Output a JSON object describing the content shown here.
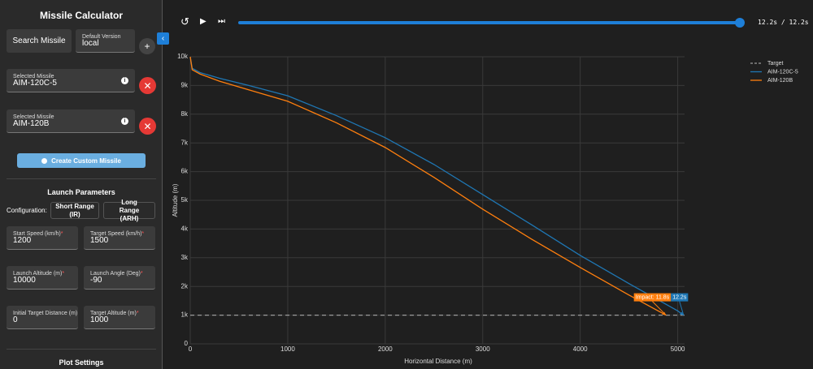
{
  "sidebar": {
    "title": "Missile Calculator",
    "search_button": "Search Missile",
    "default_version": {
      "label": "Default Version",
      "value": "local"
    },
    "selected_missiles": [
      {
        "label": "Selected Missile",
        "value": "AIM-120C-5"
      },
      {
        "label": "Selected Missile",
        "value": "AIM-120B"
      }
    ],
    "create_button": "Create Custom Missile",
    "launch_parameters": {
      "title": "Launch Parameters",
      "configuration_label": "Configuration:",
      "configurations": [
        "Short Range (IR)",
        "Long Range (ARH)"
      ],
      "fields": [
        {
          "label": "Start Speed (km/h)",
          "required_mark": "*",
          "value": "1200"
        },
        {
          "label": "Target Speed (km/h)",
          "required_mark": "*",
          "value": "1500"
        },
        {
          "label": "Launch Altitude (m)",
          "required_mark": "*",
          "value": "10000"
        },
        {
          "label": "Launch Angle (Deg)",
          "required_mark": "*",
          "value": "-90"
        },
        {
          "label": "Initial Target Distance (m)",
          "value": "0"
        },
        {
          "label": "Target Altitude (m)",
          "required_mark": "*",
          "value": "1000"
        }
      ]
    },
    "plot_settings_title": "Plot Settings"
  },
  "playback": {
    "time_label": "12.2s / 12.2s"
  },
  "chart_data": {
    "type": "line",
    "x_label": "Horizontal Distance (m)",
    "y_label": "Altitude (m)",
    "xlim": [
      0,
      5070
    ],
    "ylim": [
      0,
      10000
    ],
    "xticks": [
      0,
      1000,
      2000,
      3000,
      4000,
      5000
    ],
    "yticks": [
      {
        "value": 0,
        "label": "0"
      },
      {
        "value": 1000,
        "label": "1k"
      },
      {
        "value": 2000,
        "label": "2k"
      },
      {
        "value": 3000,
        "label": "3k"
      },
      {
        "value": 4000,
        "label": "4k"
      },
      {
        "value": 5000,
        "label": "5k"
      },
      {
        "value": 6000,
        "label": "6k"
      },
      {
        "value": 7000,
        "label": "7k"
      },
      {
        "value": 8000,
        "label": "8k"
      },
      {
        "value": 9000,
        "label": "9k"
      },
      {
        "value": 10000,
        "label": "10k"
      }
    ],
    "grid": true,
    "legend": "right",
    "series": [
      {
        "name": "Target",
        "color": "#9a9a9a",
        "dash": true,
        "x": [
          0,
          5070
        ],
        "values": [
          1000,
          1000
        ]
      },
      {
        "name": "AIM-120C-5",
        "color": "#1f77b4",
        "x": [
          0,
          20,
          100,
          300,
          600,
          1000,
          1500,
          2000,
          2500,
          3000,
          3500,
          4000,
          4500,
          5000,
          5060
        ],
        "values": [
          10000,
          9600,
          9450,
          9250,
          9000,
          8640,
          7950,
          7180,
          6250,
          5200,
          4150,
          3080,
          2100,
          1150,
          1000
        ]
      },
      {
        "name": "AIM-120B",
        "color": "#ff7f0e",
        "x": [
          0,
          20,
          100,
          300,
          600,
          1000,
          1500,
          2000,
          2500,
          3000,
          3500,
          4000,
          4500,
          4880
        ],
        "values": [
          10000,
          9550,
          9400,
          9150,
          8850,
          8450,
          7700,
          6840,
          5800,
          4690,
          3650,
          2660,
          1700,
          1000
        ]
      }
    ],
    "annotations": [
      {
        "text": "Impact: 11.8s",
        "x": 4880,
        "y": 1000,
        "color": "#ff7f0e"
      },
      {
        "text": "12.2s",
        "x": 5060,
        "y": 1000,
        "color": "#1f77b4"
      }
    ]
  }
}
